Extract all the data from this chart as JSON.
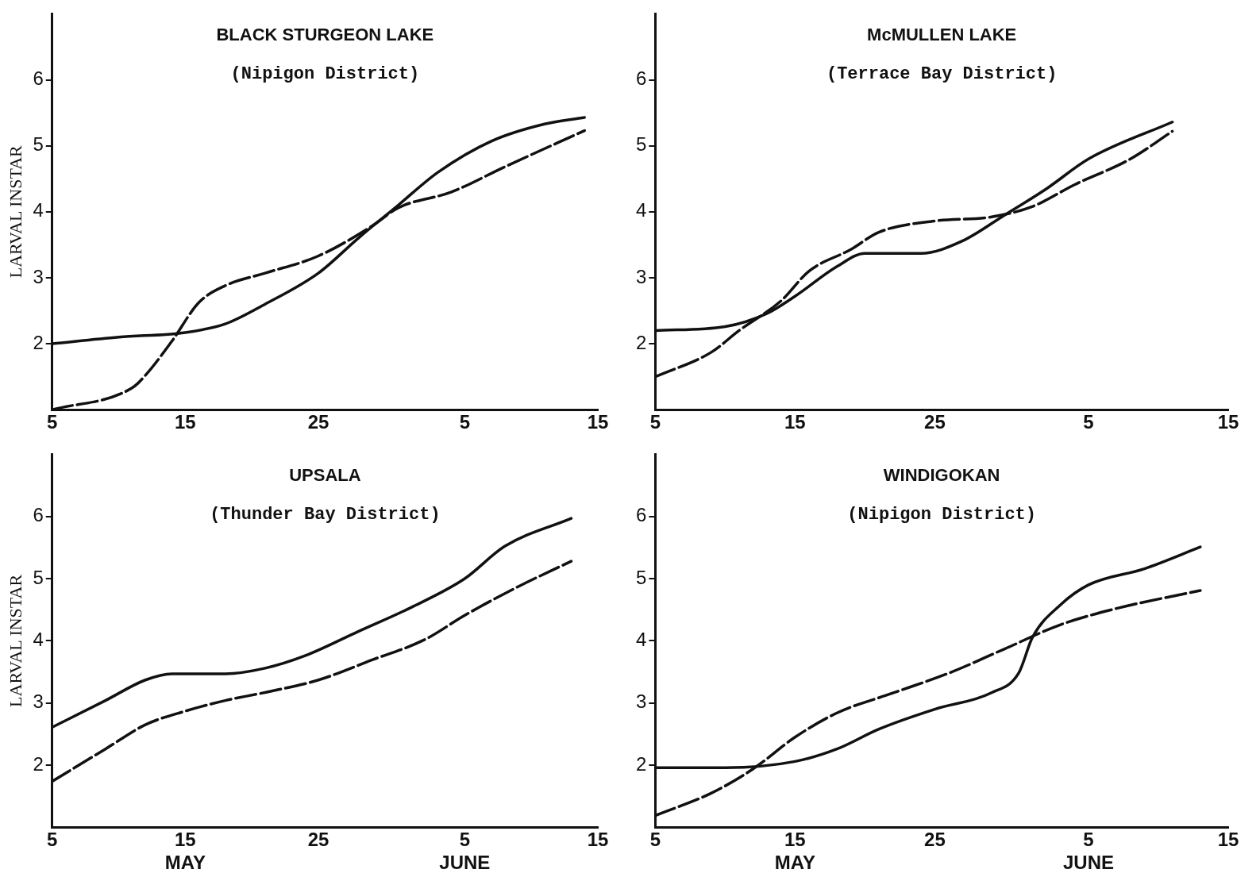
{
  "chart_data": [
    {
      "type": "line",
      "title": "BLACK STURGEON LAKE",
      "subtitle": "(Nipigon District)",
      "ylabel": "LARVAL INSTAR",
      "xlim": [
        "--05-05",
        "--06-15"
      ],
      "xticks": [
        {
          "value": "--05-05",
          "label": "5"
        },
        {
          "value": "--05-15",
          "label": "15"
        },
        {
          "value": "--05-25",
          "label": "25"
        },
        {
          "value": "--06-05",
          "label": "5"
        },
        {
          "value": "--06-15",
          "label": "15"
        }
      ],
      "ylim": [
        1,
        7
      ],
      "yticks": [
        2,
        3,
        4,
        5,
        6
      ],
      "grid": false,
      "legend": false,
      "marker": "none",
      "series": [
        {
          "color": "#111111",
          "line_style": "solid",
          "x": [
            "--05-05",
            "--05-10",
            "--05-15",
            "--05-18",
            "--05-21",
            "--05-25",
            "--05-28",
            "--05-31",
            "--06-03",
            "--06-07",
            "--06-11",
            "--06-14"
          ],
          "values": [
            2.0,
            2.1,
            2.17,
            2.3,
            2.6,
            3.07,
            3.6,
            4.1,
            4.6,
            5.07,
            5.33,
            5.43
          ]
        },
        {
          "color": "#111111",
          "line_style": "dashed",
          "x": [
            "--05-05",
            "--05-11",
            "--05-12",
            "--05-14",
            "--05-16",
            "--05-18",
            "--05-21",
            "--05-25",
            "--05-29",
            "--05-31",
            "--06-04",
            "--06-08",
            "--06-14"
          ],
          "values": [
            1.0,
            1.33,
            1.52,
            2.04,
            2.62,
            2.88,
            3.07,
            3.33,
            3.78,
            4.06,
            4.3,
            4.68,
            5.23
          ]
        }
      ]
    },
    {
      "type": "line",
      "title": "McMULLEN LAKE",
      "subtitle": "(Terrace Bay District)",
      "xlim": [
        "--05-05",
        "--06-15"
      ],
      "xticks": [
        {
          "value": "--05-05",
          "label": "5"
        },
        {
          "value": "--05-15",
          "label": "15"
        },
        {
          "value": "--05-25",
          "label": "25"
        },
        {
          "value": "--06-05",
          "label": "5"
        },
        {
          "value": "--06-15",
          "label": "15"
        }
      ],
      "ylim": [
        1,
        7
      ],
      "yticks": [
        2,
        3,
        4,
        5,
        6
      ],
      "grid": false,
      "legend": false,
      "marker": "none",
      "series": [
        {
          "color": "#111111",
          "line_style": "solid",
          "x": [
            "--05-05",
            "--05-10",
            "--05-13",
            "--05-15",
            "--05-18",
            "--05-20",
            "--05-24",
            "--05-27",
            "--05-30",
            "--06-02",
            "--06-05",
            "--06-11"
          ],
          "values": [
            2.2,
            2.26,
            2.46,
            2.72,
            3.17,
            3.37,
            3.37,
            3.56,
            3.95,
            4.35,
            4.8,
            5.36
          ]
        },
        {
          "color": "#111111",
          "line_style": "dashed",
          "x": [
            "--05-05",
            "--05-09",
            "--05-11",
            "--05-14",
            "--05-16",
            "--05-19",
            "--05-21",
            "--05-25",
            "--05-29",
            "--06-01",
            "--06-04",
            "--06-08",
            "--06-11"
          ],
          "values": [
            1.5,
            1.87,
            2.2,
            2.65,
            3.1,
            3.43,
            3.69,
            3.86,
            3.92,
            4.08,
            4.41,
            4.8,
            5.22
          ]
        }
      ]
    },
    {
      "type": "line",
      "title": "UPSALA",
      "subtitle": "(Thunder Bay District)",
      "ylabel": "LARVAL INSTAR",
      "xlim": [
        "--05-05",
        "--06-15"
      ],
      "xticks": [
        {
          "value": "--05-05",
          "label": "5"
        },
        {
          "value": "--05-15",
          "label": "15\nMAY"
        },
        {
          "value": "--05-25",
          "label": "25"
        },
        {
          "value": "--06-05",
          "label": "5\nJUNE"
        },
        {
          "value": "--06-15",
          "label": "15"
        }
      ],
      "ylim": [
        1,
        7
      ],
      "yticks": [
        2,
        3,
        4,
        5,
        6
      ],
      "grid": false,
      "legend": false,
      "marker": "none",
      "series": [
        {
          "color": "#111111",
          "line_style": "solid",
          "x": [
            "--05-05",
            "--05-09",
            "--05-12",
            "--05-14",
            "--05-18",
            "--05-21",
            "--05-24",
            "--05-28",
            "--06-01",
            "--06-05",
            "--06-08",
            "--06-13"
          ],
          "values": [
            2.61,
            3.04,
            3.37,
            3.47,
            3.47,
            3.56,
            3.76,
            4.15,
            4.54,
            5.0,
            5.52,
            5.97
          ]
        },
        {
          "color": "#111111",
          "line_style": "dashed",
          "x": [
            "--05-05",
            "--05-09",
            "--05-12",
            "--05-15",
            "--05-18",
            "--05-21",
            "--05-25",
            "--05-29",
            "--06-02",
            "--06-05",
            "--06-09",
            "--06-13"
          ],
          "values": [
            1.74,
            2.26,
            2.65,
            2.87,
            3.04,
            3.17,
            3.37,
            3.69,
            4.02,
            4.41,
            4.87,
            5.28
          ]
        }
      ]
    },
    {
      "type": "line",
      "title": "WINDIGOKAN",
      "subtitle": "(Nipigon District)",
      "xlim": [
        "--05-05",
        "--06-15"
      ],
      "xticks": [
        {
          "value": "--05-05",
          "label": "5"
        },
        {
          "value": "--05-15",
          "label": "15\nMAY"
        },
        {
          "value": "--05-25",
          "label": "25"
        },
        {
          "value": "--06-05",
          "label": "5\nJUNE"
        },
        {
          "value": "--06-15",
          "label": "15"
        }
      ],
      "ylim": [
        1,
        7
      ],
      "yticks": [
        2,
        3,
        4,
        5,
        6
      ],
      "grid": false,
      "legend": false,
      "marker": "none",
      "series": [
        {
          "color": "#111111",
          "line_style": "solid",
          "x": [
            "--05-05",
            "--05-10",
            "--05-15",
            "--05-18",
            "--05-21",
            "--05-25",
            "--05-29",
            "--05-31",
            "--06-01",
            "--06-03",
            "--06-05",
            "--06-09",
            "--06-13"
          ],
          "values": [
            1.96,
            1.96,
            2.06,
            2.26,
            2.58,
            2.9,
            3.16,
            3.48,
            4.06,
            4.58,
            4.9,
            5.16,
            5.51
          ]
        },
        {
          "color": "#111111",
          "line_style": "dashed",
          "x": [
            "--05-05",
            "--05-09",
            "--05-12",
            "--05-15",
            "--05-18",
            "--05-22",
            "--05-26",
            "--05-30",
            "--06-03",
            "--06-07",
            "--06-13"
          ],
          "values": [
            1.19,
            1.55,
            1.94,
            2.45,
            2.84,
            3.16,
            3.48,
            3.87,
            4.26,
            4.52,
            4.81
          ]
        }
      ]
    }
  ]
}
